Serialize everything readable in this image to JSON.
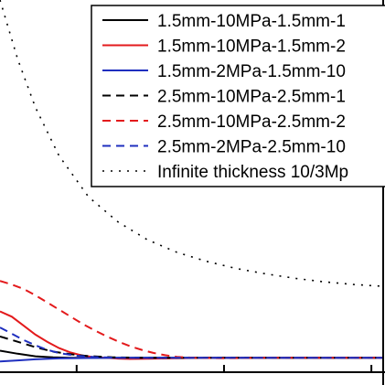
{
  "chart_data": {
    "type": "line",
    "title": "",
    "xlabel": "",
    "ylabel": "",
    "grid": false,
    "legend_position": "top-right",
    "series": [
      {
        "name": "1.5mm-10MPa-1.5mm-1",
        "style": "solid",
        "color": "#000000",
        "points": [
          [
            0.0,
            0.4
          ],
          [
            0.3,
            0.23
          ],
          [
            0.6,
            0.09
          ],
          [
            0.9,
            0.03
          ],
          [
            1.2,
            0.01
          ],
          [
            1.6,
            0.0
          ],
          [
            2.0,
            0.0
          ],
          [
            3.0,
            0.0
          ],
          [
            4.0,
            0.0
          ],
          [
            5.0,
            0.0
          ],
          [
            6.0,
            0.0
          ],
          [
            6.5,
            0.0
          ]
        ]
      },
      {
        "name": "1.5mm-10MPa-1.5mm-2",
        "style": "solid",
        "color": "#e31a1c",
        "points": [
          [
            0.0,
            2.6
          ],
          [
            0.2,
            2.3
          ],
          [
            0.4,
            1.8
          ],
          [
            0.6,
            1.3
          ],
          [
            0.8,
            0.9
          ],
          [
            1.0,
            0.55
          ],
          [
            1.2,
            0.3
          ],
          [
            1.4,
            0.13
          ],
          [
            1.6,
            0.04
          ],
          [
            1.8,
            0.0
          ],
          [
            2.0,
            -0.04
          ],
          [
            2.2,
            -0.06
          ],
          [
            2.5,
            -0.05
          ],
          [
            3.0,
            -0.02
          ],
          [
            3.5,
            0.0
          ],
          [
            4.5,
            0.0
          ],
          [
            6.5,
            0.0
          ]
        ]
      },
      {
        "name": "1.5mm-2MPa-1.5mm-10",
        "style": "solid",
        "color": "#1f2fbf",
        "points": [
          [
            0.0,
            -0.2
          ],
          [
            0.3,
            -0.14
          ],
          [
            0.6,
            -0.08
          ],
          [
            1.0,
            -0.03
          ],
          [
            1.5,
            -0.01
          ],
          [
            2.0,
            0.0
          ],
          [
            3.0,
            0.0
          ],
          [
            4.0,
            0.0
          ],
          [
            5.0,
            0.0
          ],
          [
            6.5,
            0.0
          ]
        ]
      },
      {
        "name": "2.5mm-10MPa-2.5mm-1",
        "style": "dashed",
        "color": "#000000",
        "points": [
          [
            0.0,
            1.2
          ],
          [
            0.3,
            0.9
          ],
          [
            0.6,
            0.6
          ],
          [
            0.9,
            0.35
          ],
          [
            1.2,
            0.2
          ],
          [
            1.5,
            0.1
          ],
          [
            1.9,
            0.04
          ],
          [
            2.3,
            0.01
          ],
          [
            2.8,
            0.0
          ],
          [
            3.5,
            0.0
          ],
          [
            4.5,
            0.0
          ],
          [
            6.5,
            0.0
          ]
        ]
      },
      {
        "name": "2.5mm-10MPa-2.5mm-2",
        "style": "dashed",
        "color": "#e31a1c",
        "points": [
          [
            0.0,
            4.3
          ],
          [
            0.2,
            4.1
          ],
          [
            0.4,
            3.85
          ],
          [
            0.6,
            3.5
          ],
          [
            0.8,
            3.1
          ],
          [
            1.0,
            2.7
          ],
          [
            1.2,
            2.3
          ],
          [
            1.4,
            1.9
          ],
          [
            1.6,
            1.55
          ],
          [
            1.8,
            1.22
          ],
          [
            2.0,
            0.92
          ],
          [
            2.2,
            0.66
          ],
          [
            2.4,
            0.45
          ],
          [
            2.6,
            0.28
          ],
          [
            2.8,
            0.15
          ],
          [
            3.0,
            0.06
          ],
          [
            3.3,
            0.0
          ],
          [
            3.8,
            -0.02
          ],
          [
            4.5,
            0.0
          ],
          [
            6.5,
            0.0
          ]
        ]
      },
      {
        "name": "2.5mm-2MPa-2.5mm-10",
        "style": "dashed",
        "color": "#1f2fbf",
        "points": [
          [
            0.0,
            1.7
          ],
          [
            0.2,
            1.35
          ],
          [
            0.4,
            1.0
          ],
          [
            0.6,
            0.7
          ],
          [
            0.8,
            0.45
          ],
          [
            1.0,
            0.27
          ],
          [
            1.3,
            0.12
          ],
          [
            1.6,
            0.05
          ],
          [
            2.0,
            0.01
          ],
          [
            2.5,
            0.0
          ],
          [
            4.0,
            0.0
          ],
          [
            6.5,
            0.0
          ]
        ]
      },
      {
        "name": "Infinite thickness 10/3Mp",
        "style": "dotted",
        "color": "#000000",
        "points": [
          [
            0.0,
            20.0
          ],
          [
            0.3,
            16.7
          ],
          [
            0.6,
            14.0
          ],
          [
            1.0,
            11.3
          ],
          [
            1.5,
            9.0
          ],
          [
            2.0,
            7.6
          ],
          [
            2.5,
            6.6
          ],
          [
            3.0,
            5.9
          ],
          [
            3.5,
            5.4
          ],
          [
            4.0,
            5.0
          ],
          [
            4.5,
            4.7
          ],
          [
            5.0,
            4.45
          ],
          [
            5.5,
            4.25
          ],
          [
            6.0,
            4.1
          ],
          [
            6.5,
            4.0
          ]
        ]
      }
    ]
  }
}
